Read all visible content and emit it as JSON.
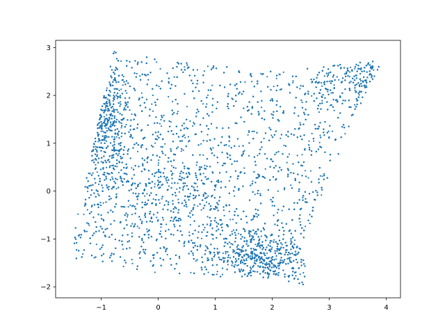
{
  "chart_data": {
    "type": "scatter",
    "title": "",
    "xlabel": "",
    "ylabel": "",
    "xlim": [
      -1.8,
      4.25
    ],
    "ylim": [
      -2.23,
      3.15
    ],
    "xticks": [
      -1,
      0,
      1,
      2,
      3,
      4
    ],
    "yticks": [
      -2,
      -1,
      0,
      1,
      2,
      3
    ],
    "grid": false,
    "legend": "none",
    "marker_color": "#1f77b4",
    "point_count": 9000,
    "region": {
      "description_vertices": [
        [
          -1.52,
          -1.05
        ],
        [
          -0.78,
          2.93
        ],
        [
          0.3,
          2.7
        ],
        [
          1.6,
          2.55
        ],
        [
          2.8,
          2.58
        ],
        [
          3.95,
          2.78
        ],
        [
          3.35,
          1.3
        ],
        [
          2.5,
          -1.2
        ],
        [
          2.66,
          -2.0
        ],
        [
          2.05,
          -1.82
        ],
        [
          0.9,
          -1.78
        ],
        [
          0.0,
          -1.72
        ],
        [
          -1.48,
          -1.45
        ]
      ],
      "dense_clusters": [
        {
          "x": -0.95,
          "y": 1.35,
          "spread": [
            0.25,
            0.7
          ],
          "weight": 0.16
        },
        {
          "x": 1.9,
          "y": -1.35,
          "spread": [
            0.5,
            0.3
          ],
          "weight": 0.14
        },
        {
          "x": 0.3,
          "y": 0.0,
          "spread": [
            0.6,
            0.5
          ],
          "weight": 0.07
        },
        {
          "x": 3.5,
          "y": 2.3,
          "spread": [
            0.35,
            0.25
          ],
          "weight": 0.05
        }
      ]
    }
  }
}
